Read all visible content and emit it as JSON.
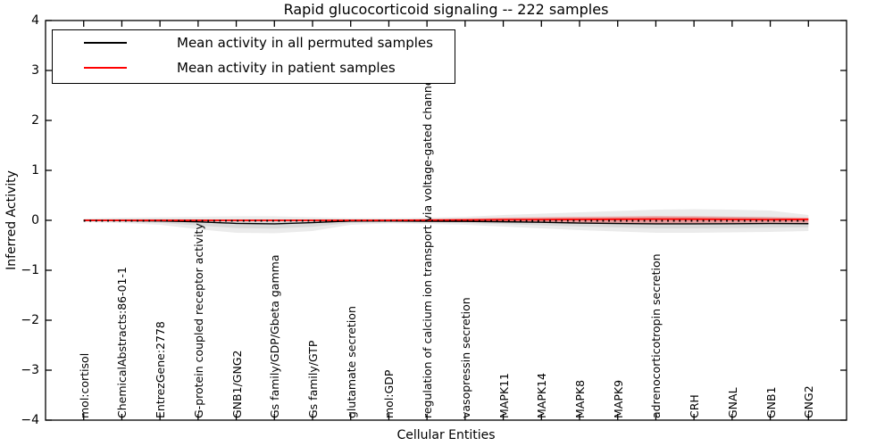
{
  "chart_data": {
    "type": "line",
    "title": "Rapid glucocorticoid signaling -- 222 samples",
    "xlabel": "Cellular Entities",
    "ylabel": "Inferred Activity",
    "ylim": [
      -4,
      4
    ],
    "yticks": [
      4,
      3,
      2,
      1,
      0,
      -1,
      -2,
      -3,
      -4
    ],
    "ytick_labels": [
      "4",
      "3",
      "2",
      "1",
      "0",
      "−1",
      "−2",
      "−3",
      "−4"
    ],
    "grid": false,
    "legend_position": "upper left",
    "categories": [
      "mol:cortisol",
      "ChemicalAbstracts:86-01-1",
      "EntrezGene:2778",
      "G-protein coupled receptor activity",
      "GNB1/GNG2",
      "Gs family/GDP/Gbeta gamma",
      "Gs family/GTP",
      "glutamate secretion",
      "mol:GDP",
      "regulation of calcium ion transport via voltage-gated channel activity",
      "vasopressin secretion",
      "MAPK11",
      "MAPK14",
      "MAPK8",
      "MAPK9",
      "adrenocorticotropin secretion",
      "CRH",
      "GNAL",
      "GNB1",
      "GNG2"
    ],
    "series": [
      {
        "name": "Mean activity in all permuted samples",
        "color": "#000000",
        "width": 1.4,
        "values": [
          0.0,
          -0.005,
          -0.011,
          -0.03,
          -0.061,
          -0.07,
          -0.045,
          -0.014,
          -0.013,
          -0.018,
          -0.021,
          -0.029,
          -0.039,
          -0.054,
          -0.064,
          -0.071,
          -0.071,
          -0.068,
          -0.064,
          -0.067
        ]
      },
      {
        "name": "Mean activity in patient samples",
        "color": "#ff0000",
        "width": 1.8,
        "values": [
          0.0,
          0.0,
          0.0,
          0.0,
          0.0,
          0.0,
          0.0,
          0.0,
          0.0,
          0.004,
          0.007,
          0.011,
          0.014,
          0.018,
          0.021,
          0.025,
          0.023,
          0.018,
          0.014,
          0.018
        ]
      }
    ],
    "bands": [
      {
        "name": "permuted-std-outer",
        "color": "rgba(0,0,0,0.08)",
        "upper": [
          0.036,
          0.054,
          0.063,
          0.071,
          0.08,
          0.08,
          0.063,
          0.045,
          0.045,
          0.054,
          0.071,
          0.107,
          0.134,
          0.161,
          0.188,
          0.214,
          0.223,
          0.214,
          0.196,
          0.107
        ],
        "lower": [
          -0.036,
          -0.054,
          -0.089,
          -0.179,
          -0.25,
          -0.259,
          -0.214,
          -0.089,
          -0.063,
          -0.071,
          -0.089,
          -0.125,
          -0.161,
          -0.196,
          -0.223,
          -0.25,
          -0.25,
          -0.241,
          -0.232,
          -0.214
        ]
      },
      {
        "name": "permuted-std-inner",
        "color": "rgba(0,0,0,0.08)",
        "upper": [
          0.018,
          0.024,
          0.026,
          0.02,
          0.01,
          0.005,
          0.009,
          0.015,
          0.016,
          0.018,
          0.025,
          0.039,
          0.047,
          0.054,
          0.062,
          0.071,
          0.076,
          0.073,
          0.066,
          0.02
        ],
        "lower": [
          -0.018,
          -0.03,
          -0.05,
          -0.104,
          -0.155,
          -0.165,
          -0.13,
          -0.052,
          -0.038,
          -0.044,
          -0.055,
          -0.077,
          -0.1,
          -0.125,
          -0.143,
          -0.161,
          -0.161,
          -0.154,
          -0.148,
          -0.14
        ]
      },
      {
        "name": "patient-std",
        "color": "rgba(255,0,0,0.28)",
        "upper": [
          0.011,
          0.011,
          0.011,
          0.011,
          0.011,
          0.011,
          0.011,
          0.011,
          0.011,
          0.021,
          0.036,
          0.054,
          0.063,
          0.071,
          0.077,
          0.084,
          0.08,
          0.071,
          0.063,
          0.054
        ],
        "lower": [
          -0.011,
          -0.011,
          -0.011,
          -0.011,
          -0.011,
          -0.011,
          -0.011,
          -0.011,
          -0.011,
          -0.021,
          -0.027,
          -0.036,
          -0.045,
          -0.054,
          -0.059,
          -0.063,
          -0.059,
          -0.054,
          -0.05,
          -0.05
        ]
      }
    ],
    "zero_line": {
      "y": 0,
      "style": "dotted",
      "color": "#000000"
    }
  }
}
